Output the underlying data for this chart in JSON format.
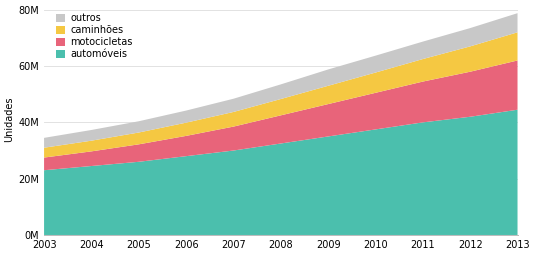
{
  "years": [
    2003,
    2004,
    2005,
    2006,
    2007,
    2008,
    2009,
    2010,
    2011,
    2012,
    2013
  ],
  "automoveis": [
    23000000,
    24500000,
    26000000,
    28000000,
    30000000,
    32500000,
    35000000,
    37500000,
    40000000,
    42000000,
    44500000
  ],
  "motocicletas": [
    4500000,
    5200000,
    6200000,
    7200000,
    8500000,
    10000000,
    11500000,
    13000000,
    14500000,
    16000000,
    17500000
  ],
  "caminhoes": [
    3500000,
    3800000,
    4200000,
    4700000,
    5200000,
    5800000,
    6500000,
    7200000,
    8000000,
    9000000,
    10000000
  ],
  "outros": [
    3500000,
    3800000,
    4000000,
    4300000,
    4700000,
    5200000,
    5800000,
    6000000,
    6200000,
    6500000,
    6800000
  ],
  "color_automoveis": "#4bbfad",
  "color_motocicletas": "#e8647a",
  "color_caminhoes": "#f5c842",
  "color_outros": "#c8c8c8",
  "ylabel": "Unidades",
  "ylim": [
    0,
    82000000
  ],
  "yticks": [
    0,
    20000000,
    40000000,
    60000000,
    80000000
  ],
  "ytick_labels": [
    "0M",
    "20M",
    "40M",
    "60M",
    "80M"
  ],
  "background_color": "#ffffff",
  "grid_color": "#dddddd"
}
